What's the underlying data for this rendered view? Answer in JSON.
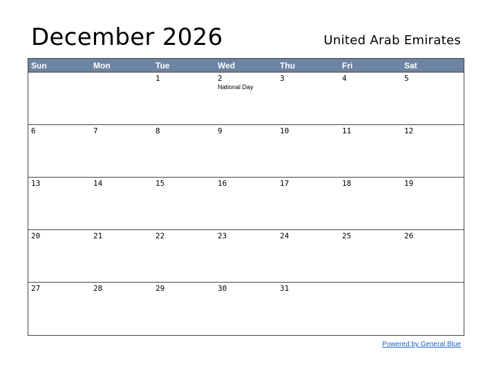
{
  "header": {
    "title": "December 2026",
    "country": "United Arab Emirates"
  },
  "weekdays": [
    "Sun",
    "Mon",
    "Tue",
    "Wed",
    "Thu",
    "Fri",
    "Sat"
  ],
  "weeks": [
    [
      {
        "day": "",
        "holiday": ""
      },
      {
        "day": "",
        "holiday": ""
      },
      {
        "day": "1",
        "holiday": ""
      },
      {
        "day": "2",
        "holiday": "National Day"
      },
      {
        "day": "3",
        "holiday": ""
      },
      {
        "day": "4",
        "holiday": ""
      },
      {
        "day": "5",
        "holiday": ""
      }
    ],
    [
      {
        "day": "6",
        "holiday": ""
      },
      {
        "day": "7",
        "holiday": ""
      },
      {
        "day": "8",
        "holiday": ""
      },
      {
        "day": "9",
        "holiday": ""
      },
      {
        "day": "10",
        "holiday": ""
      },
      {
        "day": "11",
        "holiday": ""
      },
      {
        "day": "12",
        "holiday": ""
      }
    ],
    [
      {
        "day": "13",
        "holiday": ""
      },
      {
        "day": "14",
        "holiday": ""
      },
      {
        "day": "15",
        "holiday": ""
      },
      {
        "day": "16",
        "holiday": ""
      },
      {
        "day": "17",
        "holiday": ""
      },
      {
        "day": "18",
        "holiday": ""
      },
      {
        "day": "19",
        "holiday": ""
      }
    ],
    [
      {
        "day": "20",
        "holiday": ""
      },
      {
        "day": "21",
        "holiday": ""
      },
      {
        "day": "22",
        "holiday": ""
      },
      {
        "day": "23",
        "holiday": ""
      },
      {
        "day": "24",
        "holiday": ""
      },
      {
        "day": "25",
        "holiday": ""
      },
      {
        "day": "26",
        "holiday": ""
      }
    ],
    [
      {
        "day": "27",
        "holiday": ""
      },
      {
        "day": "28",
        "holiday": ""
      },
      {
        "day": "29",
        "holiday": ""
      },
      {
        "day": "30",
        "holiday": ""
      },
      {
        "day": "31",
        "holiday": ""
      },
      {
        "day": "",
        "holiday": ""
      },
      {
        "day": "",
        "holiday": ""
      }
    ]
  ],
  "footer": {
    "link_text": "Powered by General Blue"
  },
  "colors": {
    "header_background": "#6e84a3",
    "header_text": "#ffffff",
    "link": "#1a62c6",
    "grid_line": "#444444"
  }
}
